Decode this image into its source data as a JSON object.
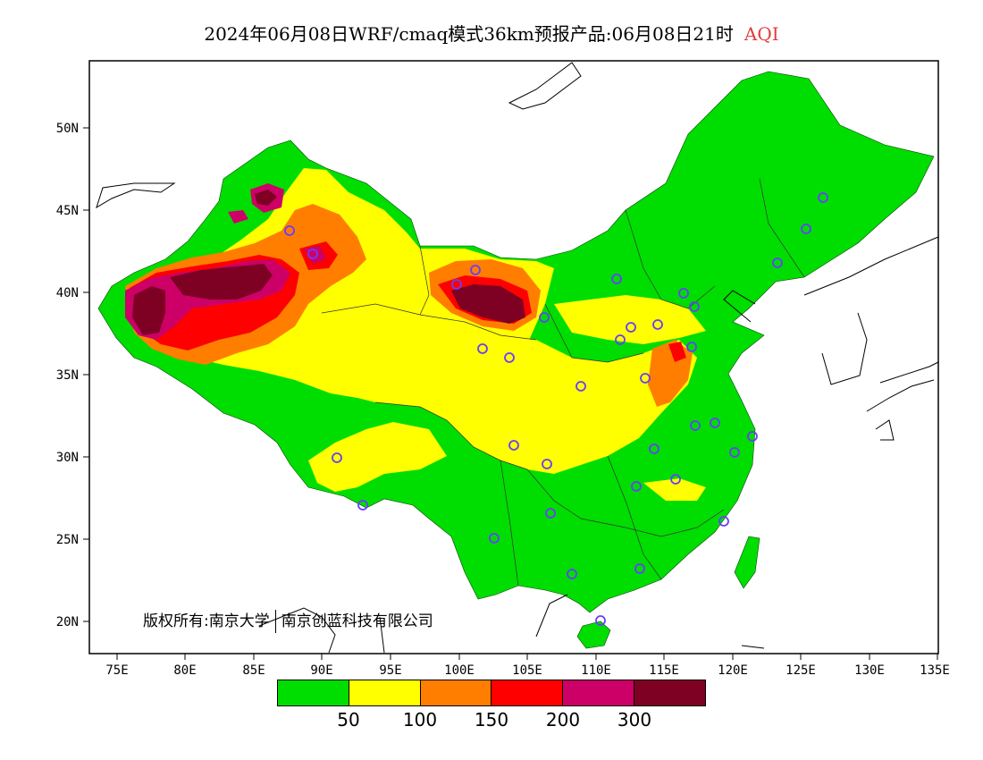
{
  "title": {
    "main": "2024年06月08日WRF/cmaq模式36km预报产品:06月08日21时",
    "quantity": "AQI"
  },
  "map": {
    "lon_range": [
      73,
      135
    ],
    "lat_range": [
      18,
      54
    ],
    "lat_ticks": [
      "50N",
      "45N",
      "40N",
      "35N",
      "30N",
      "25N",
      "20N"
    ],
    "lon_ticks": [
      "75E",
      "80E",
      "85E",
      "90E",
      "95E",
      "100E",
      "105E",
      "110E",
      "115E",
      "120E",
      "125E",
      "130E",
      "135E"
    ]
  },
  "copyright": {
    "left": "版权所有:南京大学",
    "right": "南京创蓝科技有限公司"
  },
  "legend": {
    "colors": [
      "#00dd00",
      "#ffff00",
      "#ff7e00",
      "#ff0000",
      "#cc0066",
      "#7e0023"
    ],
    "labels": [
      "50",
      "100",
      "150",
      "200",
      "300"
    ]
  }
}
